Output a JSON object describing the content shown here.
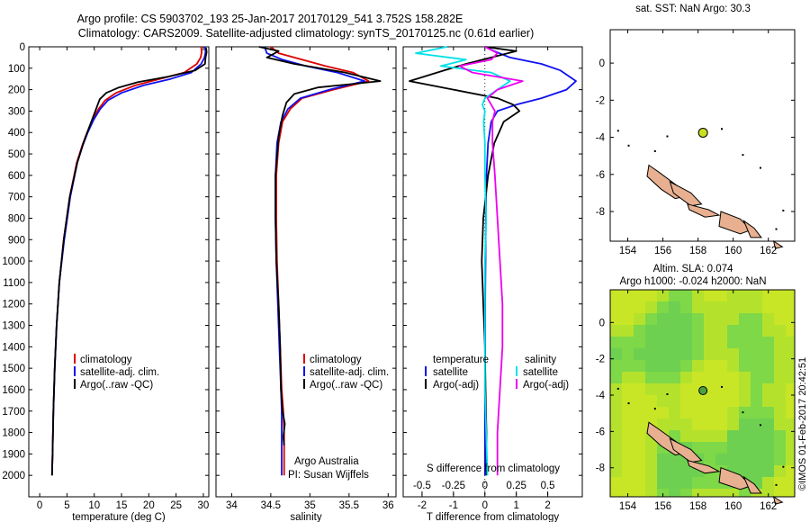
{
  "header": {
    "line1": "Argo profile: CS 5903702_193 25-Jan-2017 20170129_541 3.752S 158.282E",
    "line2": "Climatology: CARS2009. Satellite-adjusted climatology: synTS_20170125.nc (0.61d earlier)"
  },
  "stamp": "©IMOS 01-Feb-2017 20:42:51",
  "colors": {
    "climatology": "#dd0000",
    "satellite": "#1010ee",
    "argo": "#000000",
    "salinity_sat": "#00e0e8",
    "salinity_argo": "#ee00ee",
    "sst_marker": "#c8e020",
    "sla_bg": "#a8e030",
    "land": "#e8b090"
  },
  "chart_data": [
    {
      "type": "line",
      "id": "temperature",
      "xlabel": "temperature (deg C)",
      "xlim": [
        -2,
        31
      ],
      "xticks": [
        0,
        5,
        10,
        15,
        20,
        25,
        30
      ],
      "ylim": [
        2100,
        0
      ],
      "yticks": [
        0,
        100,
        200,
        300,
        400,
        500,
        600,
        700,
        800,
        900,
        1000,
        1100,
        1200,
        1300,
        1400,
        1500,
        1600,
        1700,
        1800,
        1900,
        2000
      ],
      "legend": [
        "climatology",
        "satellite-adj. clim.",
        "Argo(..raw -QC)"
      ],
      "series": [
        {
          "name": "climatology",
          "color": "#dd0000",
          "x": [
            29.6,
            29.7,
            29.5,
            28.8,
            26.5,
            22.0,
            17.5,
            14.0,
            12.0,
            10.8,
            9.7,
            8.7,
            7.8,
            6.8,
            5.5,
            4.4,
            3.6,
            3.1,
            2.75,
            2.5,
            2.35,
            2.25
          ],
          "y": [
            0,
            25,
            50,
            80,
            120,
            150,
            180,
            215,
            250,
            290,
            340,
            400,
            460,
            540,
            700,
            900,
            1100,
            1300,
            1500,
            1700,
            1900,
            2000
          ]
        },
        {
          "name": "satellite-adj. clim.",
          "color": "#1010ee",
          "x": [
            30.3,
            30.4,
            30.2,
            29.6,
            27.8,
            24.0,
            19.0,
            15.0,
            12.5,
            11.1,
            9.9,
            8.8,
            7.9,
            6.9,
            5.6,
            4.5,
            3.6,
            3.1,
            2.75,
            2.5,
            2.35,
            2.25
          ],
          "y": [
            0,
            25,
            50,
            80,
            120,
            150,
            180,
            215,
            250,
            290,
            340,
            400,
            460,
            540,
            700,
            900,
            1100,
            1300,
            1500,
            1700,
            1900,
            2000
          ]
        },
        {
          "name": "Argo(..raw -QC)",
          "color": "#000000",
          "x": [
            30.5,
            30.6,
            30.4,
            30.3,
            28.5,
            23.5,
            18.0,
            14.5,
            12.2,
            11.0,
            10.2,
            9.0,
            8.0,
            6.9,
            5.5,
            4.4,
            3.6,
            3.1,
            2.75,
            2.5,
            2.35,
            2.25
          ],
          "y": [
            5,
            25,
            50,
            80,
            110,
            140,
            165,
            190,
            215,
            245,
            300,
            380,
            450,
            540,
            700,
            900,
            1100,
            1300,
            1500,
            1700,
            1900,
            2000
          ]
        }
      ]
    },
    {
      "type": "line",
      "id": "salinity",
      "xlabel": "salinity",
      "xlim": [
        33.8,
        36.1
      ],
      "xticks": [
        34,
        34.5,
        35,
        35.5,
        36
      ],
      "xticklabels": [
        "34",
        "34.5",
        "35",
        "35.5",
        "36"
      ],
      "ylim": [
        2100,
        0
      ],
      "legend": [
        "climatology",
        "satellite-adj. clim.",
        "Argo(..raw -QC)"
      ],
      "annotation": [
        "Argo Australia",
        "PI: Susan Wijffels"
      ],
      "series": [
        {
          "name": "climatology",
          "color": "#dd0000",
          "x": [
            34.5,
            34.6,
            34.9,
            35.2,
            35.55,
            35.75,
            35.3,
            34.9,
            34.75,
            34.65,
            34.6,
            34.57,
            34.57,
            34.58,
            34.6,
            34.62,
            34.64,
            34.66,
            34.67,
            34.67,
            34.67
          ],
          "y": [
            0,
            30,
            60,
            90,
            120,
            160,
            200,
            240,
            290,
            350,
            450,
            600,
            800,
            1000,
            1200,
            1400,
            1600,
            1700,
            1800,
            1900,
            2000
          ]
        },
        {
          "name": "satellite-adj. clim.",
          "color": "#1010ee",
          "x": [
            34.42,
            34.45,
            34.65,
            34.95,
            35.35,
            35.7,
            35.25,
            34.88,
            34.72,
            34.63,
            34.58,
            34.56,
            34.56,
            34.57,
            34.59,
            34.61,
            34.63,
            34.64,
            34.64,
            34.64,
            34.64
          ],
          "y": [
            0,
            30,
            60,
            90,
            120,
            160,
            200,
            240,
            290,
            350,
            450,
            600,
            800,
            1000,
            1200,
            1400,
            1600,
            1700,
            1800,
            1900,
            2000
          ]
        },
        {
          "name": "Argo(..raw -QC)",
          "color": "#000000",
          "x": [
            34.35,
            34.6,
            34.45,
            34.8,
            35.45,
            35.9,
            35.1,
            34.8,
            34.7,
            34.65,
            34.6,
            34.56,
            34.56,
            34.57,
            34.6,
            34.62,
            34.63,
            34.65,
            34.68,
            34.66,
            34.67
          ],
          "y": [
            0,
            20,
            50,
            80,
            120,
            160,
            190,
            220,
            260,
            320,
            420,
            600,
            800,
            1000,
            1200,
            1400,
            1600,
            1700,
            1760,
            1820,
            1860
          ]
        }
      ]
    },
    {
      "type": "line",
      "id": "differences",
      "xlabel": "T difference from climatology",
      "xlim": [
        -2.6,
        3.1
      ],
      "xticks": [
        -2,
        -1,
        0,
        1,
        2
      ],
      "top_label": "S difference from climatology",
      "top_ticks": [
        "-0.5",
        "-0.25",
        "0",
        "0.25",
        "0.5"
      ],
      "top_tick_values": [
        -0.5,
        -0.25,
        0,
        0.25,
        0.5
      ],
      "ylim": [
        2100,
        0
      ],
      "legend_headers": [
        "temperature",
        "salinity"
      ],
      "legend": [
        "satellite",
        "Argo(-adj)",
        "satellite",
        "Argo(-adj)"
      ],
      "series": [
        {
          "name": "satellite",
          "quantity": "temperature",
          "color": "#1010ee",
          "x": [
            0.0,
            0.3,
            0.8,
            1.8,
            2.4,
            2.9,
            2.6,
            1.8,
            1.0,
            0.4,
            0.2,
            0.1,
            0.05,
            0.03,
            0.02,
            0.01,
            0.01,
            0.0,
            0.0,
            0.0
          ],
          "y": [
            0,
            20,
            50,
            80,
            110,
            160,
            200,
            240,
            270,
            300,
            350,
            450,
            600,
            800,
            1000,
            1200,
            1400,
            1600,
            1800,
            2000
          ]
        },
        {
          "name": "Argo(-adj)",
          "quantity": "temperature",
          "color": "#000000",
          "x": [
            0.0,
            1.0,
            0.2,
            -0.6,
            -1.3,
            -2.4,
            -1.0,
            0.4,
            0.9,
            1.1,
            0.6,
            0.3,
            0.1,
            -0.05,
            -0.1,
            -0.05,
            0.0,
            0.02,
            0.05,
            0.05
          ],
          "y": [
            0,
            20,
            50,
            80,
            110,
            160,
            200,
            240,
            270,
            300,
            350,
            450,
            600,
            800,
            1000,
            1200,
            1400,
            1600,
            1800,
            2000
          ]
        },
        {
          "name": "satellite",
          "quantity": "salinity",
          "color": "#00e0e8",
          "x": [
            -0.3,
            -0.55,
            -0.15,
            -0.35,
            0.05,
            0.2,
            0.1,
            0.0,
            -0.02,
            0.0,
            -0.01,
            0.0,
            0.0,
            0.01,
            0.0,
            0.0,
            0.0,
            0.0,
            0.01,
            0.02
          ],
          "y": [
            0,
            30,
            60,
            90,
            120,
            160,
            200,
            240,
            270,
            300,
            350,
            450,
            600,
            800,
            1000,
            1200,
            1400,
            1600,
            1800,
            2000
          ]
        },
        {
          "name": "Argo(-adj)",
          "quantity": "salinity",
          "color": "#ee00ee",
          "x": [
            0.0,
            0.1,
            0.05,
            -0.2,
            -0.1,
            0.3,
            0.1,
            0.02,
            0.05,
            0.08,
            0.06,
            0.06,
            0.08,
            0.1,
            0.12,
            0.14,
            0.14,
            0.12,
            0.1,
            0.1
          ],
          "y": [
            0,
            30,
            60,
            90,
            120,
            160,
            200,
            240,
            270,
            300,
            350,
            450,
            600,
            800,
            1000,
            1200,
            1400,
            1600,
            1800,
            2000
          ]
        }
      ]
    }
  ],
  "map_sst": {
    "title": "sat. SST: NaN Argo: 30.3",
    "xticks": [
      154,
      156,
      158,
      160,
      162
    ],
    "yticks": [
      0,
      -2,
      -4,
      -6,
      -8
    ],
    "xlim": [
      153,
      163.5
    ],
    "ylim": [
      -9.6,
      1.8
    ],
    "argo_position": {
      "lon": 158.282,
      "lat": -3.752
    }
  },
  "map_sla": {
    "title_line1": "Altim. SLA: 0.074",
    "title_line2": "Argo h1000: -0.024 h2000: NaN",
    "xticks": [
      154,
      156,
      158,
      160,
      162
    ],
    "yticks": [
      0,
      -2,
      -4,
      -6,
      -8
    ],
    "xlim": [
      153,
      163.5
    ],
    "ylim": [
      -9.6,
      1.8
    ],
    "argo_position": {
      "lon": 158.282,
      "lat": -3.752
    }
  }
}
